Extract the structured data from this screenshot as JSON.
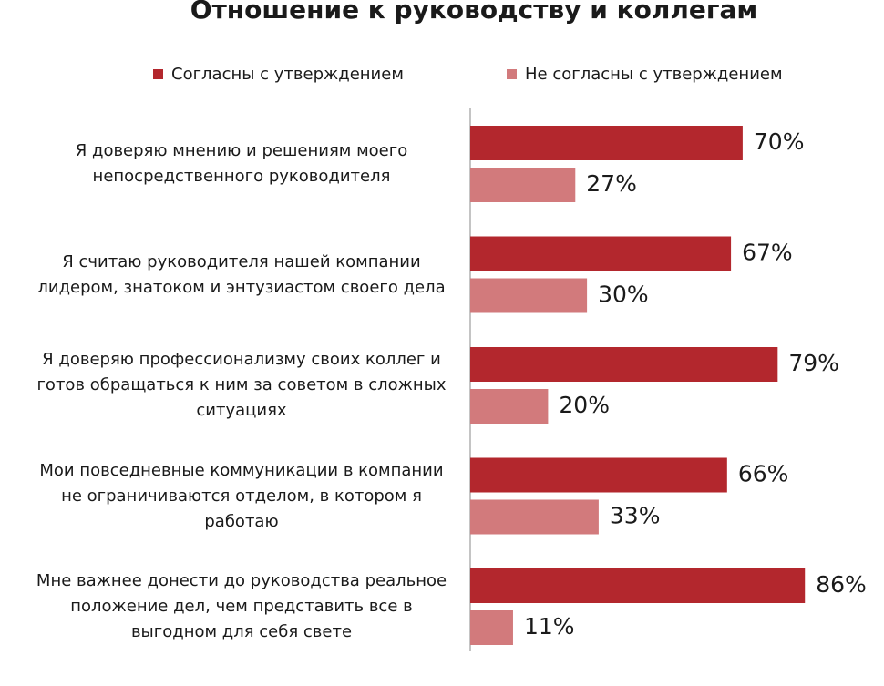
{
  "chart_data": {
    "type": "bar",
    "orientation": "horizontal",
    "title": "Отношение к руководству и коллегам",
    "categories": [
      "Я доверяю мнению и решениям моего непосредственного руководителя",
      "Я считаю руководителя нашей компании лидером, знатоком и энтузиастом своего дела",
      "Я доверяю профессионализму своих коллег и готов обращаться к ним за советом в сложных ситуациях",
      "Мои повседневные коммуникации в компании не ограничиваются отделом, в котором я работаю",
      "Мне важнее донести до руководства реальное положение дел, чем представить все в выгодном для себя свете"
    ],
    "series": [
      {
        "name": "Согласны с утверждением",
        "color": "#b3272d",
        "values": [
          70,
          67,
          79,
          66,
          86
        ],
        "value_labels": [
          "70%",
          "67%",
          "79%",
          "66%",
          "86%"
        ]
      },
      {
        "name": "Не согласны с утверждением",
        "color": "#d27a7c",
        "values": [
          27,
          30,
          20,
          33,
          11
        ],
        "value_labels": [
          "27%",
          "30%",
          "20%",
          "33%",
          "11%"
        ]
      }
    ],
    "legend": "top"
  }
}
